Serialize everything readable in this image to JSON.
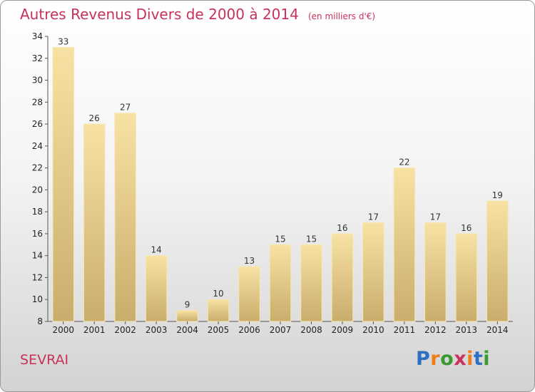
{
  "title": "Autres Revenus Divers de 2000 à 2014",
  "unit_note": "(en milliers d'€)",
  "commune": "SEVRAI",
  "brand": {
    "letters": [
      "P",
      "r",
      "o",
      "x",
      "i",
      "t",
      "i"
    ],
    "colors": [
      "#2d6fc2",
      "#f07d1a",
      "#3a9a2e",
      "#c8325a",
      "#f07d1a",
      "#2d6fc2",
      "#3a9a2e"
    ]
  },
  "colors": {
    "bar_light": "#f8e2a3",
    "bar_dark": "#c9ad6c",
    "title": "#c8325a"
  },
  "chart_data": {
    "type": "bar",
    "title": "Autres Revenus Divers de 2000 à 2014",
    "subtitle": "(en milliers d'€)",
    "xlabel": "",
    "ylabel": "",
    "categories": [
      "2000",
      "2001",
      "2002",
      "2003",
      "2004",
      "2005",
      "2006",
      "2007",
      "2008",
      "2009",
      "2010",
      "2011",
      "2012",
      "2013",
      "2014"
    ],
    "values": [
      33,
      26,
      27,
      14,
      9,
      10,
      13,
      15,
      15,
      16,
      17,
      22,
      17,
      16,
      19
    ],
    "ylim": [
      8,
      34
    ],
    "yticks": [
      8,
      10,
      12,
      14,
      16,
      18,
      20,
      22,
      24,
      26,
      28,
      30,
      32,
      34
    ],
    "grid": false,
    "legend": "none"
  }
}
